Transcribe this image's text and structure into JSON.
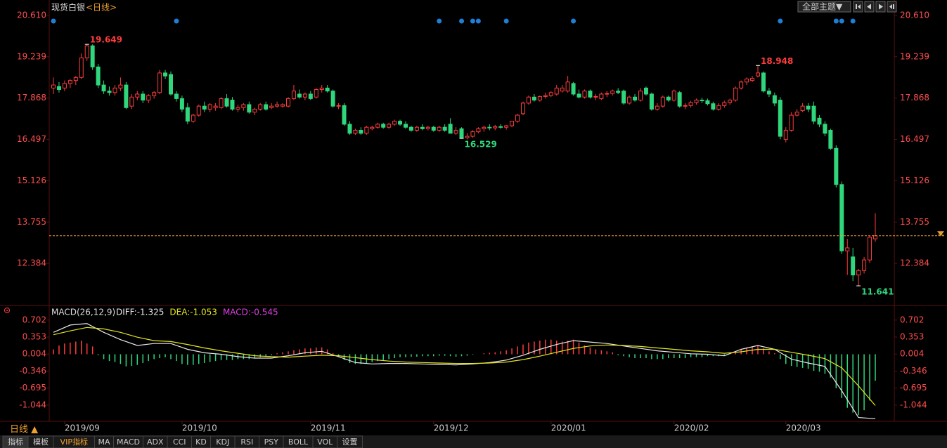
{
  "header": {
    "title": "现货白银",
    "period": "<日线>",
    "theme_button": "全部主题▼"
  },
  "chart_data": [
    {
      "type": "candlestick",
      "candles": [
        [
          18.2,
          18.55,
          18.0,
          18.3
        ],
        [
          18.25,
          18.4,
          18.05,
          18.15
        ],
        [
          18.2,
          18.45,
          18.1,
          18.35
        ],
        [
          18.35,
          18.5,
          18.2,
          18.45
        ],
        [
          18.45,
          18.6,
          18.3,
          18.55
        ],
        [
          18.55,
          19.35,
          18.5,
          19.2
        ],
        [
          19.2,
          19.649,
          19.1,
          19.6
        ],
        [
          19.6,
          19.65,
          18.8,
          18.9
        ],
        [
          18.9,
          19.0,
          18.2,
          18.3
        ],
        [
          18.3,
          18.45,
          18.0,
          18.1
        ],
        [
          18.1,
          18.25,
          17.95,
          18.05
        ],
        [
          18.05,
          18.3,
          17.95,
          18.2
        ],
        [
          18.2,
          18.55,
          18.1,
          18.3
        ],
        [
          18.3,
          18.4,
          17.5,
          17.55
        ],
        [
          17.6,
          18.0,
          17.5,
          17.9
        ],
        [
          17.9,
          18.1,
          17.8,
          18.0
        ],
        [
          18.0,
          18.1,
          17.7,
          17.8
        ],
        [
          17.8,
          18.0,
          17.7,
          17.95
        ],
        [
          17.95,
          18.1,
          17.85,
          18.05
        ],
        [
          18.05,
          18.8,
          18.0,
          18.7
        ],
        [
          18.7,
          18.8,
          18.5,
          18.6
        ],
        [
          18.65,
          18.75,
          17.95,
          18.0
        ],
        [
          18.0,
          18.1,
          17.75,
          17.85
        ],
        [
          17.85,
          17.95,
          17.4,
          17.5
        ],
        [
          17.55,
          17.7,
          17.0,
          17.1
        ],
        [
          17.1,
          17.35,
          17.05,
          17.3
        ],
        [
          17.3,
          17.65,
          17.25,
          17.6
        ],
        [
          17.6,
          17.75,
          17.4,
          17.5
        ],
        [
          17.5,
          17.7,
          17.4,
          17.65
        ],
        [
          17.55,
          17.7,
          17.45,
          17.6
        ],
        [
          17.55,
          17.9,
          17.5,
          17.85
        ],
        [
          17.85,
          18.0,
          17.55,
          17.6
        ],
        [
          17.8,
          17.9,
          17.45,
          17.5
        ],
        [
          17.5,
          17.65,
          17.4,
          17.55
        ],
        [
          17.55,
          17.7,
          17.45,
          17.65
        ],
        [
          17.65,
          17.75,
          17.35,
          17.4
        ],
        [
          17.4,
          17.55,
          17.3,
          17.5
        ],
        [
          17.5,
          17.7,
          17.45,
          17.65
        ],
        [
          17.65,
          17.75,
          17.45,
          17.5
        ],
        [
          17.55,
          17.7,
          17.5,
          17.6
        ],
        [
          17.6,
          17.75,
          17.55,
          17.65
        ],
        [
          17.6,
          17.7,
          17.55,
          17.65
        ],
        [
          17.6,
          17.9,
          17.55,
          17.85
        ],
        [
          17.85,
          18.3,
          17.8,
          18.1
        ],
        [
          18.0,
          18.15,
          17.85,
          17.9
        ],
        [
          17.9,
          18.05,
          17.8,
          18.0
        ],
        [
          18.0,
          18.1,
          17.8,
          17.85
        ],
        [
          17.9,
          18.2,
          17.85,
          18.15
        ],
        [
          18.15,
          18.3,
          18.05,
          18.2
        ],
        [
          18.2,
          18.3,
          18.05,
          18.1
        ],
        [
          18.1,
          18.15,
          17.55,
          17.6
        ],
        [
          17.6,
          17.7,
          17.5,
          17.62
        ],
        [
          17.62,
          17.7,
          16.95,
          17.0
        ],
        [
          17.0,
          17.1,
          16.65,
          16.7
        ],
        [
          16.7,
          16.85,
          16.65,
          16.8
        ],
        [
          16.8,
          16.9,
          16.65,
          16.7
        ],
        [
          16.7,
          16.95,
          16.65,
          16.9
        ],
        [
          16.85,
          16.95,
          16.8,
          16.9
        ],
        [
          16.9,
          17.05,
          16.85,
          17.0
        ],
        [
          17.0,
          17.05,
          16.85,
          16.9
        ],
        [
          16.9,
          17.05,
          16.85,
          17.0
        ],
        [
          17.0,
          17.15,
          16.95,
          17.1
        ],
        [
          17.1,
          17.15,
          16.95,
          17.0
        ],
        [
          17.0,
          17.1,
          16.85,
          16.9
        ],
        [
          16.9,
          16.95,
          16.75,
          16.8
        ],
        [
          16.8,
          16.95,
          16.75,
          16.9
        ],
        [
          16.9,
          17.0,
          16.8,
          16.85
        ],
        [
          16.85,
          16.95,
          16.8,
          16.9
        ],
        [
          16.9,
          16.95,
          16.75,
          16.8
        ],
        [
          16.8,
          16.95,
          16.75,
          16.9
        ],
        [
          16.9,
          17.0,
          16.75,
          16.8
        ],
        [
          17.0,
          17.2,
          16.7,
          16.7
        ],
        [
          16.7,
          16.9,
          16.65,
          16.8
        ],
        [
          16.85,
          16.9,
          16.529,
          16.55
        ],
        [
          16.55,
          16.7,
          16.5,
          16.6
        ],
        [
          16.6,
          16.8,
          16.55,
          16.75
        ],
        [
          16.75,
          16.9,
          16.7,
          16.85
        ],
        [
          16.85,
          16.95,
          16.75,
          16.9
        ],
        [
          16.9,
          17.0,
          16.8,
          16.88
        ],
        [
          16.88,
          16.98,
          16.8,
          16.92
        ],
        [
          16.92,
          17.0,
          16.85,
          16.9
        ],
        [
          16.9,
          16.98,
          16.82,
          16.95
        ],
        [
          16.95,
          17.1,
          16.9,
          17.1
        ],
        [
          17.1,
          17.35,
          17.05,
          17.3
        ],
        [
          17.35,
          17.75,
          17.3,
          17.7
        ],
        [
          17.7,
          17.95,
          17.65,
          17.9
        ],
        [
          17.9,
          18.0,
          17.75,
          17.8
        ],
        [
          17.8,
          17.95,
          17.75,
          17.92
        ],
        [
          17.92,
          18.05,
          17.85,
          17.95
        ],
        [
          17.95,
          18.1,
          17.9,
          18.05
        ],
        [
          18.0,
          18.3,
          17.95,
          18.2
        ],
        [
          18.1,
          18.3,
          18.05,
          18.2
        ],
        [
          18.1,
          18.6,
          18.05,
          18.4
        ],
        [
          18.35,
          18.4,
          17.95,
          18.0
        ],
        [
          18.0,
          18.15,
          17.85,
          17.9
        ],
        [
          17.9,
          18.15,
          17.85,
          18.1
        ],
        [
          18.1,
          18.15,
          17.85,
          17.9
        ],
        [
          17.9,
          18.0,
          17.8,
          17.92
        ],
        [
          17.85,
          18.05,
          17.8,
          18.0
        ],
        [
          18.0,
          18.1,
          17.9,
          18.02
        ],
        [
          18.02,
          18.15,
          17.95,
          18.1
        ],
        [
          18.1,
          18.2,
          18.0,
          18.05
        ],
        [
          18.1,
          18.15,
          17.65,
          17.7
        ],
        [
          17.7,
          17.95,
          17.65,
          17.9
        ],
        [
          17.9,
          18.0,
          17.75,
          17.8
        ],
        [
          17.8,
          18.2,
          17.75,
          18.1
        ],
        [
          18.2,
          18.25,
          17.95,
          18.0
        ],
        [
          18.0,
          18.05,
          17.45,
          17.5
        ],
        [
          17.5,
          17.7,
          17.45,
          17.6
        ],
        [
          17.6,
          17.95,
          17.55,
          17.9
        ],
        [
          17.9,
          17.95,
          17.75,
          17.8
        ],
        [
          17.8,
          18.15,
          17.75,
          18.1
        ],
        [
          18.05,
          18.1,
          17.55,
          17.6
        ],
        [
          17.6,
          17.7,
          17.5,
          17.62
        ],
        [
          17.62,
          17.78,
          17.55,
          17.72
        ],
        [
          17.72,
          17.85,
          17.65,
          17.8
        ],
        [
          17.8,
          17.88,
          17.7,
          17.78
        ],
        [
          17.78,
          17.85,
          17.62,
          17.68
        ],
        [
          17.68,
          17.75,
          17.45,
          17.5
        ],
        [
          17.5,
          17.7,
          17.45,
          17.62
        ],
        [
          17.62,
          17.78,
          17.55,
          17.72
        ],
        [
          17.72,
          17.85,
          17.65,
          17.8
        ],
        [
          17.8,
          18.25,
          17.75,
          18.2
        ],
        [
          18.2,
          18.45,
          18.15,
          18.4
        ],
        [
          18.4,
          18.55,
          18.3,
          18.5
        ],
        [
          18.45,
          18.6,
          18.4,
          18.52
        ],
        [
          18.6,
          18.948,
          18.55,
          18.7
        ],
        [
          18.7,
          18.75,
          18.05,
          18.1
        ],
        [
          18.1,
          18.2,
          17.9,
          18.0
        ],
        [
          17.95,
          18.05,
          17.6,
          17.7
        ],
        [
          17.8,
          17.9,
          16.5,
          16.6
        ],
        [
          16.5,
          16.9,
          16.4,
          16.8
        ],
        [
          16.8,
          17.4,
          16.75,
          17.3
        ],
        [
          17.3,
          17.5,
          17.25,
          17.4
        ],
        [
          17.45,
          17.7,
          17.4,
          17.6
        ],
        [
          17.6,
          17.7,
          17.4,
          17.5
        ],
        [
          17.6,
          17.75,
          17.0,
          17.1
        ],
        [
          17.2,
          17.3,
          16.9,
          17.0
        ],
        [
          17.0,
          17.1,
          16.6,
          16.7
        ],
        [
          16.8,
          16.85,
          16.15,
          16.2
        ],
        [
          16.2,
          16.3,
          14.9,
          15.0
        ],
        [
          15.0,
          15.1,
          12.7,
          12.8
        ],
        [
          12.8,
          13.2,
          12.0,
          12.9
        ],
        [
          12.6,
          12.9,
          11.8,
          12.0
        ],
        [
          12.0,
          12.2,
          11.641,
          12.15
        ],
        [
          12.15,
          12.6,
          12.05,
          12.5
        ],
        [
          12.5,
          13.3,
          12.4,
          13.25
        ],
        [
          13.2,
          14.05,
          13.1,
          13.3
        ]
      ],
      "ylim": [
        11.06,
        20.84
      ],
      "yticks": [
        {
          "value": 20.61,
          "label": "20.610"
        },
        19.239,
        17.868,
        16.497,
        15.126,
        13.755,
        12.384
      ],
      "annotations": [
        19.649,
        18.948,
        16.529,
        11.641
      ],
      "events": [
        0,
        22,
        69,
        73,
        75,
        76,
        81,
        93,
        130,
        140,
        141,
        143
      ],
      "xticks": [
        {
          "value": 2,
          "label": "2019/09"
        },
        {
          "value": 23,
          "label": "2019/10"
        },
        {
          "value": 46,
          "label": "2019/11"
        },
        {
          "value": 68,
          "label": "2019/12"
        },
        {
          "value": 89,
          "label": "2020/01"
        },
        {
          "value": 111,
          "label": "2020/02"
        },
        {
          "value": 131,
          "label": "2020/03"
        }
      ],
      "up_color": "#ff3c3c",
      "down_color": "#2fd67c",
      "event_color": "#1e7fd8",
      "last_line_color": "#e8a03a"
    },
    {
      "type": "macd",
      "title": "MACD(26,12,9)",
      "x": [
        0,
        3,
        6,
        9,
        12,
        15,
        18,
        21,
        24,
        27,
        30,
        33,
        36,
        39,
        42,
        45,
        48,
        51,
        54,
        57,
        60,
        63,
        66,
        69,
        72,
        75,
        78,
        81,
        84,
        87,
        90,
        93,
        96,
        99,
        102,
        105,
        108,
        111,
        114,
        117,
        120,
        123,
        126,
        129,
        132,
        135,
        138,
        141,
        144,
        147
      ],
      "series": [
        {
          "name": "DIFF:-1.325",
          "color": "#e8e8e8",
          "values": [
            0.45,
            0.6,
            0.63,
            0.45,
            0.3,
            0.18,
            0.22,
            0.22,
            0.1,
            0.03,
            0.0,
            -0.05,
            -0.08,
            -0.08,
            -0.03,
            0.03,
            0.06,
            -0.05,
            -0.17,
            -0.2,
            -0.19,
            -0.19,
            -0.2,
            -0.21,
            -0.22,
            -0.2,
            -0.17,
            -0.12,
            -0.02,
            0.1,
            0.2,
            0.28,
            0.25,
            0.22,
            0.17,
            0.12,
            0.07,
            0.04,
            0.01,
            0.0,
            -0.03,
            0.1,
            0.18,
            0.1,
            -0.1,
            -0.18,
            -0.25,
            -0.75,
            -1.3,
            -1.325
          ]
        },
        {
          "name": "DEA:-1.053",
          "color": "#e6e61e",
          "values": [
            0.4,
            0.48,
            0.55,
            0.52,
            0.45,
            0.35,
            0.28,
            0.26,
            0.2,
            0.13,
            0.07,
            0.02,
            -0.03,
            -0.05,
            -0.06,
            -0.04,
            -0.02,
            -0.03,
            -0.07,
            -0.11,
            -0.14,
            -0.16,
            -0.17,
            -0.18,
            -0.19,
            -0.19,
            -0.18,
            -0.16,
            -0.11,
            -0.04,
            0.04,
            0.12,
            0.17,
            0.19,
            0.18,
            0.16,
            0.13,
            0.1,
            0.07,
            0.05,
            0.02,
            0.05,
            0.1,
            0.1,
            0.04,
            -0.02,
            -0.09,
            -0.28,
            -0.65,
            -1.053
          ]
        }
      ],
      "histogram": {
        "name": "MACD:-0.545",
        "color": "#e040e0",
        "values": [
          0.1,
          0.18,
          0.22,
          0.24,
          0.26,
          0.28,
          0.22,
          0.16,
          -0.02,
          -0.1,
          -0.14,
          -0.16,
          -0.2,
          -0.25,
          -0.24,
          -0.22,
          -0.18,
          -0.14,
          -0.1,
          -0.08,
          -0.06,
          -0.1,
          -0.14,
          -0.2,
          -0.22,
          -0.22,
          -0.2,
          -0.18,
          -0.16,
          -0.14,
          -0.12,
          -0.12,
          -0.12,
          -0.1,
          -0.1,
          -0.1,
          -0.08,
          -0.06,
          -0.04,
          -0.02,
          0.02,
          0.04,
          0.06,
          0.08,
          0.1,
          0.12,
          0.12,
          0.14,
          0.14,
          0.1,
          0.02,
          -0.06,
          -0.12,
          -0.18,
          -0.2,
          -0.2,
          -0.18,
          -0.16,
          -0.14,
          -0.12,
          -0.1,
          -0.08,
          -0.06,
          -0.06,
          -0.05,
          -0.05,
          -0.04,
          -0.04,
          -0.04,
          -0.03,
          -0.03,
          -0.04,
          -0.05,
          -0.04,
          -0.03,
          -0.01,
          0.0,
          0.02,
          0.03,
          0.04,
          0.06,
          0.08,
          0.12,
          0.16,
          0.2,
          0.24,
          0.26,
          0.28,
          0.3,
          0.3,
          0.28,
          0.26,
          0.28,
          0.3,
          0.24,
          0.18,
          0.14,
          0.1,
          0.08,
          0.06,
          0.04,
          -0.02,
          -0.04,
          -0.06,
          -0.08,
          -0.08,
          -0.08,
          -0.1,
          -0.1,
          -0.1,
          -0.08,
          -0.08,
          -0.08,
          -0.08,
          -0.06,
          -0.06,
          -0.06,
          -0.04,
          -0.04,
          -0.04,
          -0.02,
          0.02,
          0.06,
          0.1,
          0.14,
          0.16,
          0.18,
          0.12,
          0.06,
          0.02,
          -0.1,
          -0.2,
          -0.24,
          -0.26,
          -0.28,
          -0.3,
          -0.34,
          -0.36,
          -0.4,
          -0.48,
          -0.7,
          -0.9,
          -1.1,
          -1.2,
          -1.25,
          -1.15,
          -0.95,
          -0.545
        ]
      },
      "ylim": [
        -1.45,
        0.93
      ],
      "yticks": [
        0.702,
        0.353,
        0.004,
        -0.346,
        -0.695,
        -1.044
      ],
      "up_color": "#ff3c3c",
      "down_color": "#2fd67c"
    }
  ],
  "footer": {
    "period": "日线 ▲",
    "tabs": [
      "指标",
      "模板",
      "VIP指标",
      "MA",
      "MACD",
      "ADX",
      "CCI",
      "KD",
      "KDJ",
      "RSI",
      "PSY",
      "BOLL",
      "VOL",
      "设置"
    ]
  }
}
